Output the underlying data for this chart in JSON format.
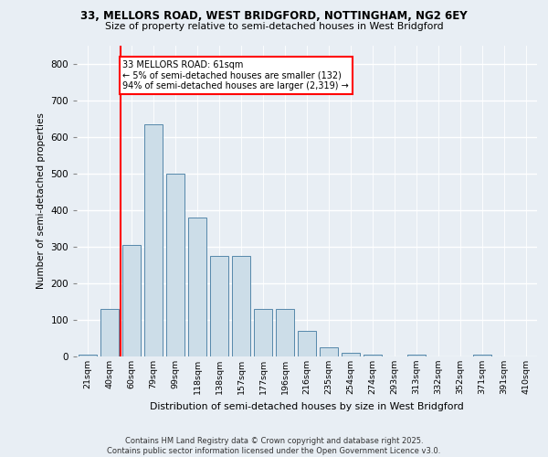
{
  "title1": "33, MELLORS ROAD, WEST BRIDGFORD, NOTTINGHAM, NG2 6EY",
  "title2": "Size of property relative to semi-detached houses in West Bridgford",
  "xlabel": "Distribution of semi-detached houses by size in West Bridgford",
  "ylabel": "Number of semi-detached properties",
  "bar_labels": [
    "21sqm",
    "40sqm",
    "60sqm",
    "79sqm",
    "99sqm",
    "118sqm",
    "138sqm",
    "157sqm",
    "177sqm",
    "196sqm",
    "216sqm",
    "235sqm",
    "254sqm",
    "274sqm",
    "293sqm",
    "313sqm",
    "332sqm",
    "352sqm",
    "371sqm",
    "391sqm",
    "410sqm"
  ],
  "bar_values": [
    5,
    130,
    305,
    635,
    500,
    380,
    275,
    275,
    130,
    130,
    70,
    25,
    10,
    5,
    0,
    5,
    0,
    0,
    5,
    0,
    0
  ],
  "bar_color": "#ccdde8",
  "bar_edge_color": "#5588aa",
  "property_line_x": 1.5,
  "annotation_title": "33 MELLORS ROAD: 61sqm",
  "annotation_line1": "← 5% of semi-detached houses are smaller (132)",
  "annotation_line2": "94% of semi-detached houses are larger (2,319) →",
  "ylim": [
    0,
    850
  ],
  "yticks": [
    0,
    100,
    200,
    300,
    400,
    500,
    600,
    700,
    800
  ],
  "footer1": "Contains HM Land Registry data © Crown copyright and database right 2025.",
  "footer2": "Contains public sector information licensed under the Open Government Licence v3.0.",
  "bg_color": "#e8eef4"
}
